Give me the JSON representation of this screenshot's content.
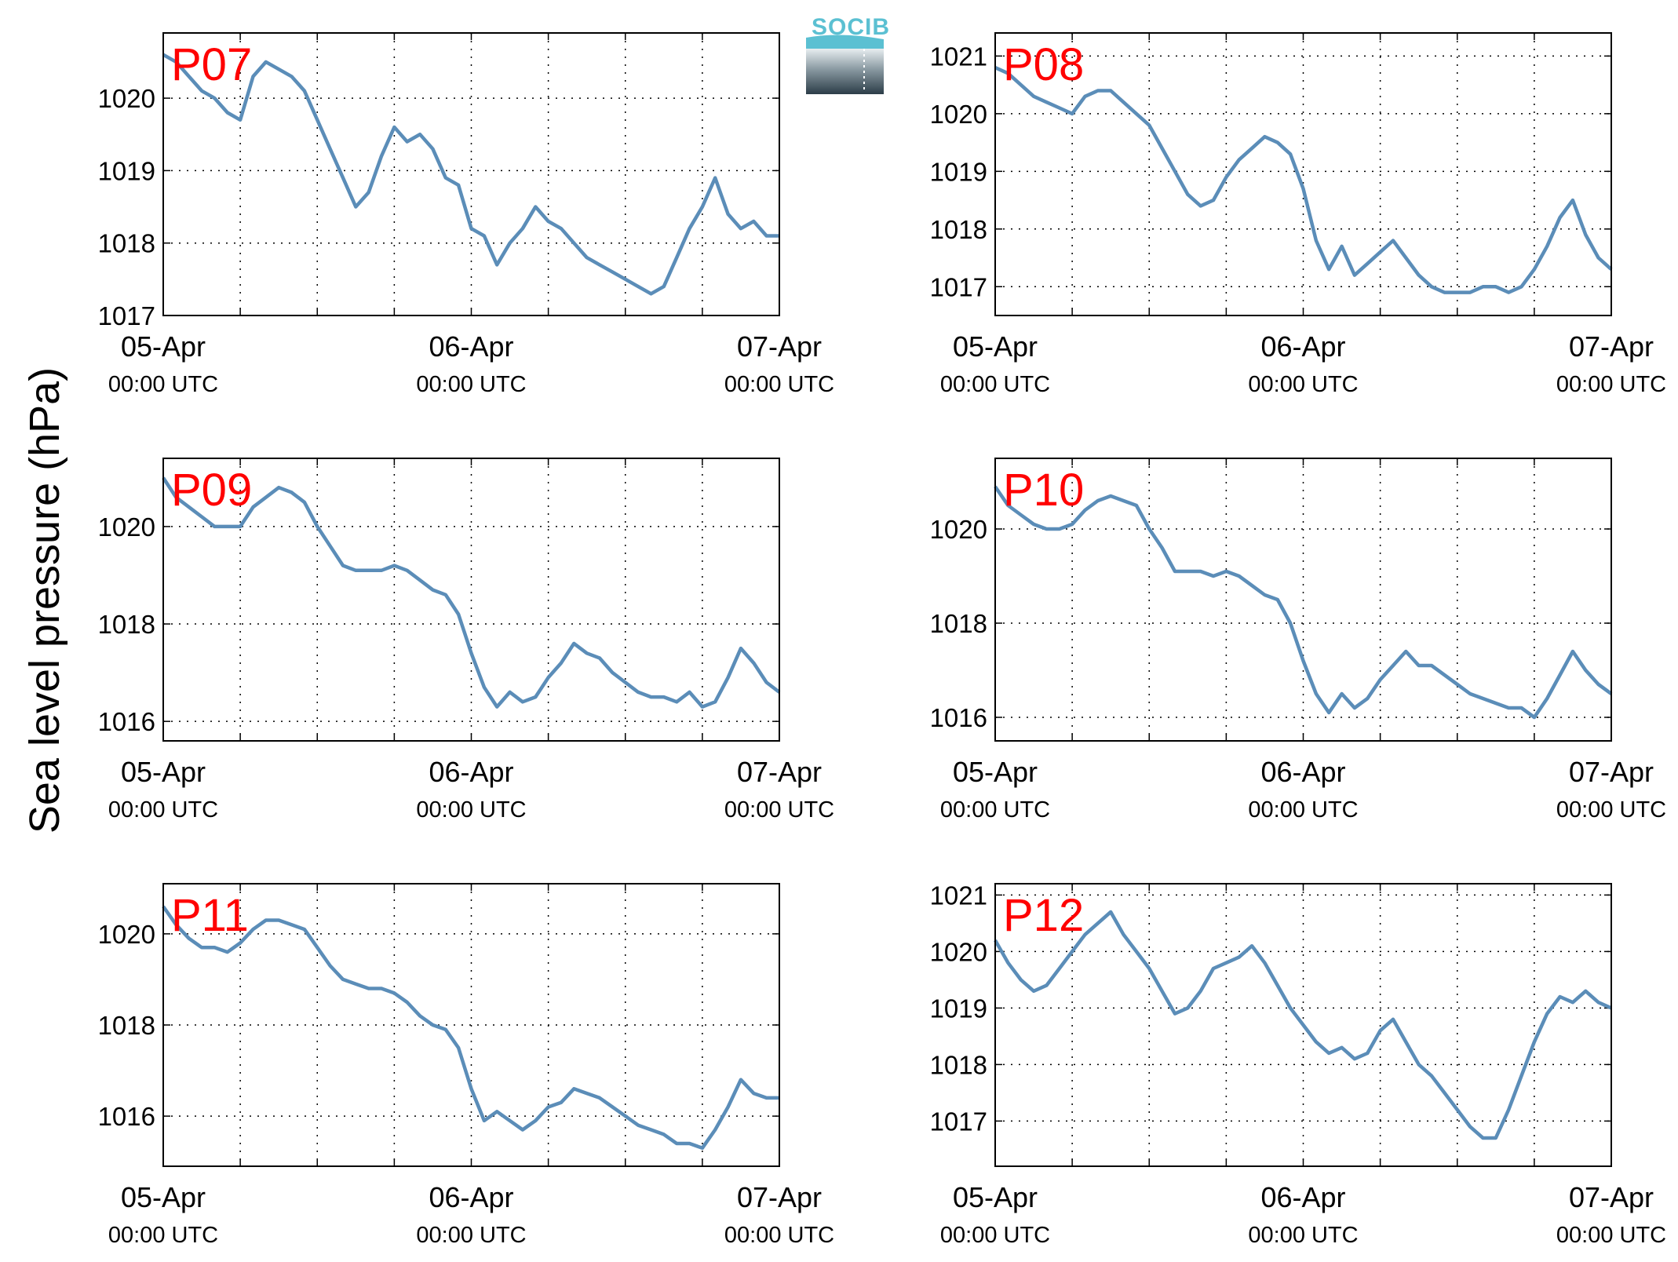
{
  "figure": {
    "ylabel": "Sea level pressure (hPa)",
    "logo_text": "SOCIB",
    "line_color": "#5b8db8",
    "label_color": "#ff0000"
  },
  "chart_data": [
    {
      "type": "line",
      "title": "P07",
      "x_ticks": [
        {
          "date": "05-Apr",
          "time": "00:00 UTC"
        },
        {
          "date": "06-Apr",
          "time": "00:00 UTC"
        },
        {
          "date": "07-Apr",
          "time": "00:00 UTC"
        }
      ],
      "xlim_hours": [
        0,
        48
      ],
      "ylim": [
        1017,
        1020.9
      ],
      "yticks": [
        1017,
        1018,
        1019,
        1020
      ],
      "grid": true,
      "series": [
        {
          "x_hours": [
            0,
            1,
            2,
            3,
            4,
            5,
            6,
            7,
            8,
            9,
            10,
            11,
            12,
            13,
            14,
            15,
            16,
            17,
            18,
            19,
            20,
            21,
            22,
            23,
            24,
            25,
            26,
            27,
            28,
            29,
            30,
            31,
            32,
            33,
            34,
            35,
            36,
            37,
            38,
            39,
            40,
            41,
            42,
            43,
            44,
            45,
            46,
            47,
            48
          ],
          "values": [
            1020.6,
            1020.5,
            1020.3,
            1020.1,
            1020.0,
            1019.8,
            1019.7,
            1020.3,
            1020.5,
            1020.4,
            1020.3,
            1020.1,
            1019.7,
            1019.3,
            1018.9,
            1018.5,
            1018.7,
            1019.2,
            1019.6,
            1019.4,
            1019.5,
            1019.3,
            1018.9,
            1018.8,
            1018.2,
            1018.1,
            1017.7,
            1018.0,
            1018.2,
            1018.5,
            1018.3,
            1018.2,
            1018.0,
            1017.8,
            1017.7,
            1017.6,
            1017.5,
            1017.4,
            1017.3,
            1017.4,
            1017.8,
            1018.2,
            1018.5,
            1018.9,
            1018.4,
            1018.2,
            1018.3,
            1018.1,
            1018.1
          ]
        }
      ]
    },
    {
      "type": "line",
      "title": "P08",
      "x_ticks": [
        {
          "date": "05-Apr",
          "time": "00:00 UTC"
        },
        {
          "date": "06-Apr",
          "time": "00:00 UTC"
        },
        {
          "date": "07-Apr",
          "time": "00:00 UTC"
        }
      ],
      "xlim_hours": [
        0,
        48
      ],
      "ylim": [
        1016.5,
        1021.4
      ],
      "yticks": [
        1017,
        1018,
        1019,
        1020,
        1021
      ],
      "grid": true,
      "series": [
        {
          "x_hours": [
            0,
            1,
            2,
            3,
            4,
            5,
            6,
            7,
            8,
            9,
            10,
            11,
            12,
            13,
            14,
            15,
            16,
            17,
            18,
            19,
            20,
            21,
            22,
            23,
            24,
            25,
            26,
            27,
            28,
            29,
            30,
            31,
            32,
            33,
            34,
            35,
            36,
            37,
            38,
            39,
            40,
            41,
            42,
            43,
            44,
            45,
            46,
            47,
            48
          ],
          "values": [
            1020.8,
            1020.7,
            1020.5,
            1020.3,
            1020.2,
            1020.1,
            1020.0,
            1020.3,
            1020.4,
            1020.4,
            1020.2,
            1020.0,
            1019.8,
            1019.4,
            1019.0,
            1018.6,
            1018.4,
            1018.5,
            1018.9,
            1019.2,
            1019.4,
            1019.6,
            1019.5,
            1019.3,
            1018.7,
            1017.8,
            1017.3,
            1017.7,
            1017.2,
            1017.4,
            1017.6,
            1017.8,
            1017.5,
            1017.2,
            1017.0,
            1016.9,
            1016.9,
            1016.9,
            1017.0,
            1017.0,
            1016.9,
            1017.0,
            1017.3,
            1017.7,
            1018.2,
            1018.5,
            1017.9,
            1017.5,
            1017.3
          ]
        }
      ]
    },
    {
      "type": "line",
      "title": "P09",
      "x_ticks": [
        {
          "date": "05-Apr",
          "time": "00:00 UTC"
        },
        {
          "date": "06-Apr",
          "time": "00:00 UTC"
        },
        {
          "date": "07-Apr",
          "time": "00:00 UTC"
        }
      ],
      "xlim_hours": [
        0,
        48
      ],
      "ylim": [
        1015.6,
        1021.4
      ],
      "yticks": [
        1016,
        1018,
        1020
      ],
      "grid": true,
      "series": [
        {
          "x_hours": [
            0,
            1,
            2,
            3,
            4,
            5,
            6,
            7,
            8,
            9,
            10,
            11,
            12,
            13,
            14,
            15,
            16,
            17,
            18,
            19,
            20,
            21,
            22,
            23,
            24,
            25,
            26,
            27,
            28,
            29,
            30,
            31,
            32,
            33,
            34,
            35,
            36,
            37,
            38,
            39,
            40,
            41,
            42,
            43,
            44,
            45,
            46,
            47,
            48
          ],
          "values": [
            1021.0,
            1020.6,
            1020.4,
            1020.2,
            1020.0,
            1020.0,
            1020.0,
            1020.4,
            1020.6,
            1020.8,
            1020.7,
            1020.5,
            1020.0,
            1019.6,
            1019.2,
            1019.1,
            1019.1,
            1019.1,
            1019.2,
            1019.1,
            1018.9,
            1018.7,
            1018.6,
            1018.2,
            1017.4,
            1016.7,
            1016.3,
            1016.6,
            1016.4,
            1016.5,
            1016.9,
            1017.2,
            1017.6,
            1017.4,
            1017.3,
            1017.0,
            1016.8,
            1016.6,
            1016.5,
            1016.5,
            1016.4,
            1016.6,
            1016.3,
            1016.4,
            1016.9,
            1017.5,
            1017.2,
            1016.8,
            1016.6
          ]
        }
      ]
    },
    {
      "type": "line",
      "title": "P10",
      "x_ticks": [
        {
          "date": "05-Apr",
          "time": "00:00 UTC"
        },
        {
          "date": "06-Apr",
          "time": "00:00 UTC"
        },
        {
          "date": "07-Apr",
          "time": "00:00 UTC"
        }
      ],
      "xlim_hours": [
        0,
        48
      ],
      "ylim": [
        1015.5,
        1021.5
      ],
      "yticks": [
        1016,
        1018,
        1020
      ],
      "grid": true,
      "series": [
        {
          "x_hours": [
            0,
            1,
            2,
            3,
            4,
            5,
            6,
            7,
            8,
            9,
            10,
            11,
            12,
            13,
            14,
            15,
            16,
            17,
            18,
            19,
            20,
            21,
            22,
            23,
            24,
            25,
            26,
            27,
            28,
            29,
            30,
            31,
            32,
            33,
            34,
            35,
            36,
            37,
            38,
            39,
            40,
            41,
            42,
            43,
            44,
            45,
            46,
            47,
            48
          ],
          "values": [
            1020.9,
            1020.5,
            1020.3,
            1020.1,
            1020.0,
            1020.0,
            1020.1,
            1020.4,
            1020.6,
            1020.7,
            1020.6,
            1020.5,
            1020.0,
            1019.6,
            1019.1,
            1019.1,
            1019.1,
            1019.0,
            1019.1,
            1019.0,
            1018.8,
            1018.6,
            1018.5,
            1018.0,
            1017.2,
            1016.5,
            1016.1,
            1016.5,
            1016.2,
            1016.4,
            1016.8,
            1017.1,
            1017.4,
            1017.1,
            1017.1,
            1016.9,
            1016.7,
            1016.5,
            1016.4,
            1016.3,
            1016.2,
            1016.2,
            1016.0,
            1016.4,
            1016.9,
            1017.4,
            1017.0,
            1016.7,
            1016.5
          ]
        }
      ]
    },
    {
      "type": "line",
      "title": "P11",
      "x_ticks": [
        {
          "date": "05-Apr",
          "time": "00:00 UTC"
        },
        {
          "date": "06-Apr",
          "time": "00:00 UTC"
        },
        {
          "date": "07-Apr",
          "time": "00:00 UTC"
        }
      ],
      "xlim_hours": [
        0,
        48
      ],
      "ylim": [
        1014.9,
        1021.1
      ],
      "yticks": [
        1016,
        1018,
        1020
      ],
      "grid": true,
      "series": [
        {
          "x_hours": [
            0,
            1,
            2,
            3,
            4,
            5,
            6,
            7,
            8,
            9,
            10,
            11,
            12,
            13,
            14,
            15,
            16,
            17,
            18,
            19,
            20,
            21,
            22,
            23,
            24,
            25,
            26,
            27,
            28,
            29,
            30,
            31,
            32,
            33,
            34,
            35,
            36,
            37,
            38,
            39,
            40,
            41,
            42,
            43,
            44,
            45,
            46,
            47,
            48
          ],
          "values": [
            1020.6,
            1020.2,
            1019.9,
            1019.7,
            1019.7,
            1019.6,
            1019.8,
            1020.1,
            1020.3,
            1020.3,
            1020.2,
            1020.1,
            1019.7,
            1019.3,
            1019.0,
            1018.9,
            1018.8,
            1018.8,
            1018.7,
            1018.5,
            1018.2,
            1018.0,
            1017.9,
            1017.5,
            1016.6,
            1015.9,
            1016.1,
            1015.9,
            1015.7,
            1015.9,
            1016.2,
            1016.3,
            1016.6,
            1016.5,
            1016.4,
            1016.2,
            1016.0,
            1015.8,
            1015.7,
            1015.6,
            1015.4,
            1015.4,
            1015.3,
            1015.7,
            1016.2,
            1016.8,
            1016.5,
            1016.4,
            1016.4
          ]
        }
      ]
    },
    {
      "type": "line",
      "title": "P12",
      "x_ticks": [
        {
          "date": "05-Apr",
          "time": "00:00 UTC"
        },
        {
          "date": "06-Apr",
          "time": "00:00 UTC"
        },
        {
          "date": "07-Apr",
          "time": "00:00 UTC"
        }
      ],
      "xlim_hours": [
        0,
        48
      ],
      "ylim": [
        1016.2,
        1021.2
      ],
      "yticks": [
        1017,
        1018,
        1019,
        1020,
        1021
      ],
      "grid": true,
      "series": [
        {
          "x_hours": [
            0,
            1,
            2,
            3,
            4,
            5,
            6,
            7,
            8,
            9,
            10,
            11,
            12,
            13,
            14,
            15,
            16,
            17,
            18,
            19,
            20,
            21,
            22,
            23,
            24,
            25,
            26,
            27,
            28,
            29,
            30,
            31,
            32,
            33,
            34,
            35,
            36,
            37,
            38,
            39,
            40,
            41,
            42,
            43,
            44,
            45,
            46,
            47,
            48
          ],
          "values": [
            1020.2,
            1019.8,
            1019.5,
            1019.3,
            1019.4,
            1019.7,
            1020.0,
            1020.3,
            1020.5,
            1020.7,
            1020.3,
            1020.0,
            1019.7,
            1019.3,
            1018.9,
            1019.0,
            1019.3,
            1019.7,
            1019.8,
            1019.9,
            1020.1,
            1019.8,
            1019.4,
            1019.0,
            1018.7,
            1018.4,
            1018.2,
            1018.3,
            1018.1,
            1018.2,
            1018.6,
            1018.8,
            1018.4,
            1018.0,
            1017.8,
            1017.5,
            1017.2,
            1016.9,
            1016.7,
            1016.7,
            1017.2,
            1017.8,
            1018.4,
            1018.9,
            1019.2,
            1019.1,
            1019.3,
            1019.1,
            1019.0
          ]
        }
      ]
    }
  ]
}
